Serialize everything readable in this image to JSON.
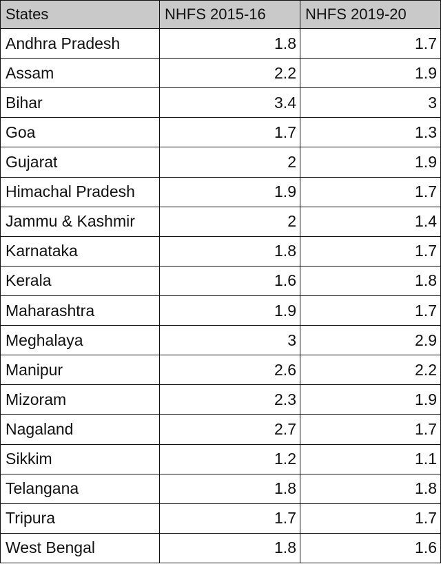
{
  "chart_data": {
    "type": "table",
    "columns": [
      "States",
      "NHFS 2015-16",
      "NHFS 2019-20"
    ],
    "rows": [
      {
        "state": "Andhra Pradesh",
        "v2015": "1.8",
        "v2019": "1.7"
      },
      {
        "state": "Assam",
        "v2015": "2.2",
        "v2019": "1.9"
      },
      {
        "state": "Bihar",
        "v2015": "3.4",
        "v2019": "3"
      },
      {
        "state": "Goa",
        "v2015": "1.7",
        "v2019": "1.3"
      },
      {
        "state": "Gujarat",
        "v2015": "2",
        "v2019": "1.9"
      },
      {
        "state": "Himachal Pradesh",
        "v2015": "1.9",
        "v2019": "1.7"
      },
      {
        "state": "Jammu & Kashmir",
        "v2015": "2",
        "v2019": "1.4"
      },
      {
        "state": "Karnataka",
        "v2015": "1.8",
        "v2019": "1.7"
      },
      {
        "state": "Kerala",
        "v2015": "1.6",
        "v2019": "1.8"
      },
      {
        "state": "Maharashtra",
        "v2015": "1.9",
        "v2019": "1.7"
      },
      {
        "state": "Meghalaya",
        "v2015": "3",
        "v2019": "2.9"
      },
      {
        "state": "Manipur",
        "v2015": "2.6",
        "v2019": "2.2"
      },
      {
        "state": "Mizoram",
        "v2015": "2.3",
        "v2019": "1.9"
      },
      {
        "state": "Nagaland",
        "v2015": "2.7",
        "v2019": "1.7"
      },
      {
        "state": "Sikkim",
        "v2015": "1.2",
        "v2019": "1.1"
      },
      {
        "state": "Telangana",
        "v2015": "1.8",
        "v2019": "1.8"
      },
      {
        "state": "Tripura",
        "v2015": "1.7",
        "v2019": "1.7"
      },
      {
        "state": "West Bengal",
        "v2015": "1.8",
        "v2019": "1.6"
      }
    ]
  },
  "colors": {
    "header_bg": "#c9c9c9",
    "border": "#111111",
    "text": "#111111",
    "background": "#ffffff"
  }
}
